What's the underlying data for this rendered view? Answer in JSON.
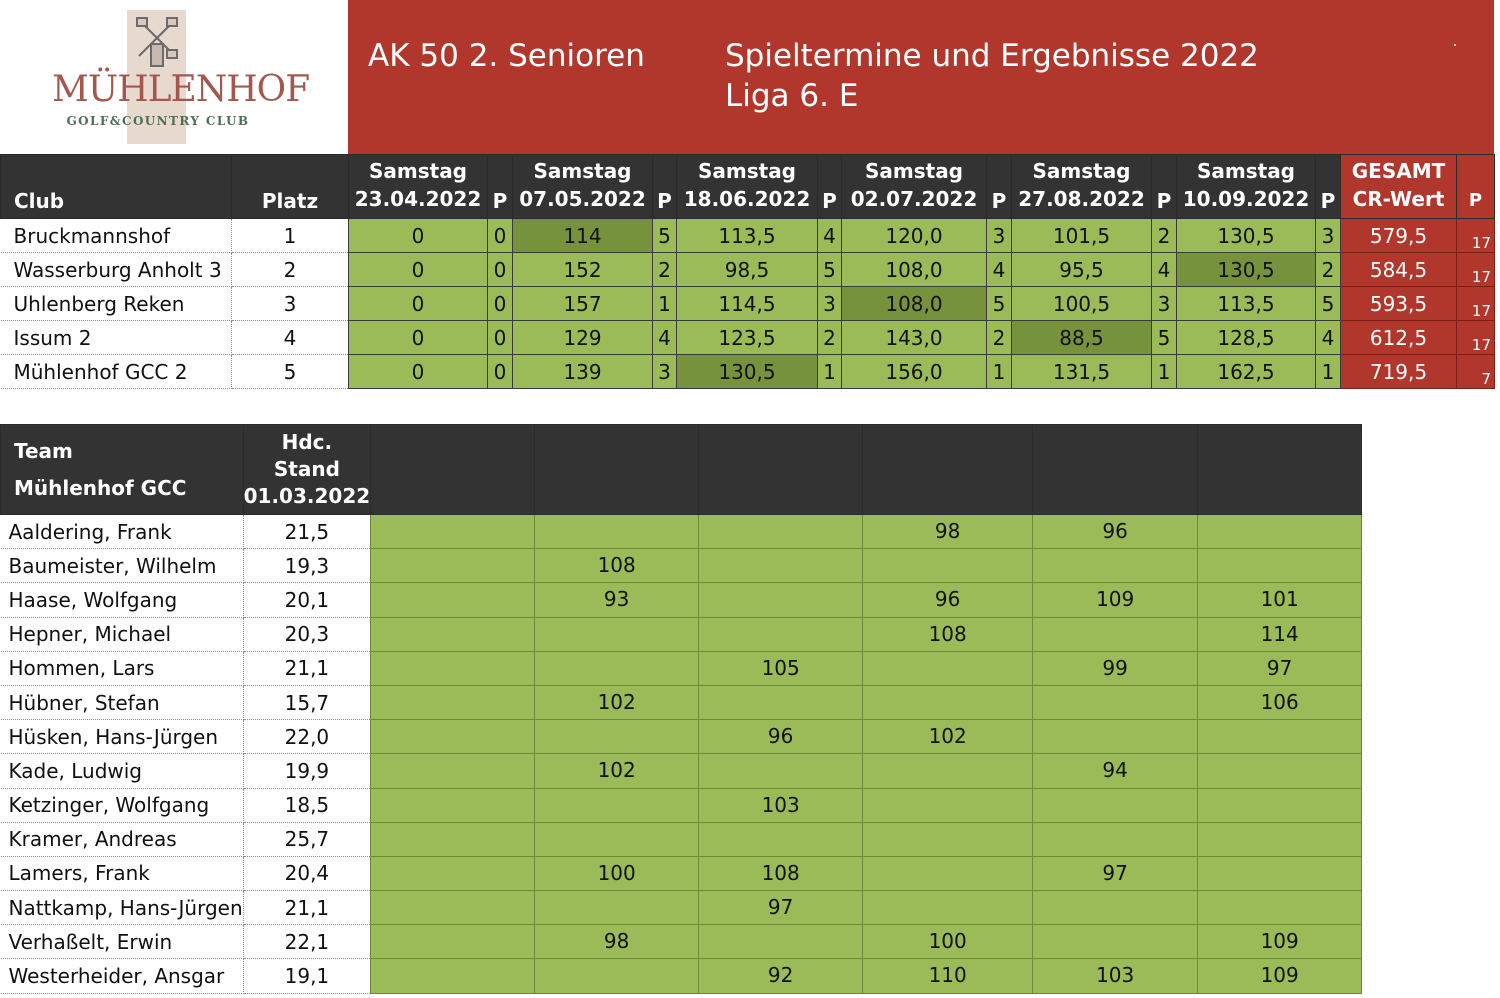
{
  "logo": {
    "name": "MÜHLENHOF",
    "subtitle": "GOLF&COUNTRY CLUB",
    "icon": "windmill-icon"
  },
  "title": {
    "line1_left": "AK 50  2. Senioren",
    "line1_right": "Spieltermine  und  Ergebnisse 2022",
    "line2": "Liga 6. E"
  },
  "standings": {
    "headers": {
      "club": "Club",
      "platz": "Platz",
      "p": "P",
      "rounds": [
        {
          "day": "Samstag",
          "date": "23.04.2022"
        },
        {
          "day": "Samstag",
          "date": "07.05.2022"
        },
        {
          "day": "Samstag",
          "date": "18.06.2022"
        },
        {
          "day": "Samstag",
          "date": "02.07.2022"
        },
        {
          "day": "Samstag",
          "date": "27.08.2022"
        },
        {
          "day": "Samstag",
          "date": "10.09.2022"
        }
      ],
      "gesamt": "GESAMT",
      "crwert": "CR-Wert",
      "total_p": "P"
    },
    "rows": [
      {
        "club": "Bruckmannshof",
        "platz": "1",
        "results": [
          [
            "0",
            "0"
          ],
          [
            "114",
            "5"
          ],
          [
            "113,5",
            "4"
          ],
          [
            "120,0",
            "3"
          ],
          [
            "101,5",
            "2"
          ],
          [
            "130,5",
            "3"
          ]
        ],
        "total": "579,5",
        "p": "17"
      },
      {
        "club": "Wasserburg Anholt 3",
        "platz": "2",
        "results": [
          [
            "0",
            "0"
          ],
          [
            "152",
            "2"
          ],
          [
            "98,5",
            "5"
          ],
          [
            "108,0",
            "4"
          ],
          [
            "95,5",
            "4"
          ],
          [
            "130,5",
            "2"
          ]
        ],
        "total": "584,5",
        "p": "17"
      },
      {
        "club": "Uhlenberg Reken",
        "platz": "3",
        "results": [
          [
            "0",
            "0"
          ],
          [
            "157",
            "1"
          ],
          [
            "114,5",
            "3"
          ],
          [
            "108,0",
            "5"
          ],
          [
            "100,5",
            "3"
          ],
          [
            "113,5",
            "5"
          ]
        ],
        "total": "593,5",
        "p": "17"
      },
      {
        "club": "Issum 2",
        "platz": "4",
        "results": [
          [
            "0",
            "0"
          ],
          [
            "129",
            "4"
          ],
          [
            "123,5",
            "2"
          ],
          [
            "143,0",
            "2"
          ],
          [
            "88,5",
            "5"
          ],
          [
            "128,5",
            "4"
          ]
        ],
        "total": "612,5",
        "p": "17"
      },
      {
        "club": "Mühlenhof GCC 2",
        "platz": "5",
        "results": [
          [
            "0",
            "0"
          ],
          [
            "139",
            "3"
          ],
          [
            "130,5",
            "1"
          ],
          [
            "156,0",
            "1"
          ],
          [
            "131,5",
            "1"
          ],
          [
            "162,5",
            "1"
          ]
        ],
        "total": "719,5",
        "p": "7"
      }
    ],
    "highlights": {
      "best_round_color": "#76923c",
      "score_color": "#9bbb59",
      "total_color": "#b1372c"
    }
  },
  "team": {
    "headers": {
      "team_line1": "Team",
      "team_line2": "Mühlenhof GCC",
      "hdc_line1": "Hdc.",
      "hdc_line2": "Stand",
      "hdc_line3": "01.03.2022"
    },
    "players": [
      {
        "name": "Aaldering, Frank",
        "hdc": "21,5",
        "scores": [
          "",
          "",
          "",
          "98",
          "96",
          ""
        ]
      },
      {
        "name": "Baumeister, Wilhelm",
        "hdc": "19,3",
        "scores": [
          "",
          "108",
          "",
          "",
          "",
          ""
        ]
      },
      {
        "name": "Haase, Wolfgang",
        "hdc": "20,1",
        "scores": [
          "",
          "93",
          "",
          "96",
          "109",
          "101"
        ]
      },
      {
        "name": "Hepner, Michael",
        "hdc": "20,3",
        "scores": [
          "",
          "",
          "",
          "108",
          "",
          "114"
        ]
      },
      {
        "name": "Hommen, Lars",
        "hdc": "21,1",
        "scores": [
          "",
          "",
          "105",
          "",
          "99",
          "97"
        ]
      },
      {
        "name": "Hübner, Stefan",
        "hdc": "15,7",
        "scores": [
          "",
          "102",
          "",
          "",
          "",
          "106"
        ]
      },
      {
        "name": "Hüsken, Hans-Jürgen",
        "hdc": "22,0",
        "scores": [
          "",
          "",
          "96",
          "102",
          "",
          ""
        ]
      },
      {
        "name": "Kade, Ludwig",
        "hdc": "19,9",
        "scores": [
          "",
          "102",
          "",
          "",
          "94",
          ""
        ]
      },
      {
        "name": "Ketzinger, Wolfgang",
        "hdc": "18,5",
        "scores": [
          "",
          "",
          "103",
          "",
          "",
          ""
        ]
      },
      {
        "name": "Kramer, Andreas",
        "hdc": "25,7",
        "scores": [
          "",
          "",
          "",
          "",
          "",
          ""
        ]
      },
      {
        "name": "Lamers, Frank",
        "hdc": "20,4",
        "scores": [
          "",
          "100",
          "108",
          "",
          "97",
          ""
        ]
      },
      {
        "name": "Nattkamp, Hans-Jürgen",
        "hdc": "21,1",
        "scores": [
          "",
          "",
          "97",
          "",
          "",
          ""
        ]
      },
      {
        "name": "Verhaßelt, Erwin",
        "hdc": "22,1",
        "scores": [
          "",
          "98",
          "",
          "100",
          "",
          "109"
        ]
      },
      {
        "name": "Westerheider, Ansgar",
        "hdc": "19,1",
        "scores": [
          "",
          "",
          "92",
          "110",
          "103",
          "109"
        ]
      }
    ]
  }
}
